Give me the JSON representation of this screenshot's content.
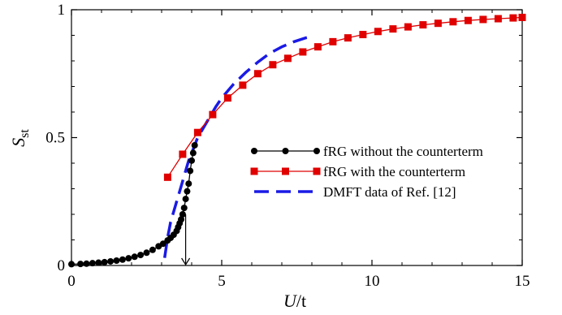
{
  "chart_data": {
    "type": "line",
    "xlabel_main": "U",
    "xlabel_sub": "/t",
    "ylabel_main": "S",
    "ylabel_sub": "st",
    "xlim": [
      0,
      15
    ],
    "ylim": [
      0,
      1
    ],
    "x_tick_labels": [
      "0",
      "5",
      "10",
      "15"
    ],
    "y_tick_labels": [
      "0",
      "0.5",
      "1"
    ],
    "legend_position": "center-right",
    "arrow_at_x": 3.8,
    "series": [
      {
        "name": "fRG without the counterterm",
        "color": "#000000",
        "marker": "circle",
        "style": "solid",
        "x": [
          0.0,
          0.3,
          0.5,
          0.7,
          0.9,
          1.1,
          1.3,
          1.5,
          1.7,
          1.9,
          2.1,
          2.3,
          2.5,
          2.7,
          2.9,
          3.05,
          3.2,
          3.3,
          3.4,
          3.5,
          3.55,
          3.6,
          3.65,
          3.7,
          3.75,
          3.8,
          3.85,
          3.9,
          3.95,
          4.0,
          4.05,
          4.1
        ],
        "y": [
          0.005,
          0.006,
          0.007,
          0.009,
          0.011,
          0.013,
          0.016,
          0.019,
          0.023,
          0.028,
          0.034,
          0.041,
          0.05,
          0.061,
          0.075,
          0.085,
          0.098,
          0.108,
          0.12,
          0.135,
          0.15,
          0.165,
          0.18,
          0.2,
          0.225,
          0.26,
          0.29,
          0.32,
          0.37,
          0.41,
          0.44,
          0.47
        ]
      },
      {
        "name": "fRG with the counterterm",
        "color": "#e00000",
        "marker": "square",
        "style": "solid",
        "x": [
          3.2,
          3.7,
          4.2,
          4.7,
          5.2,
          5.7,
          6.2,
          6.7,
          7.2,
          7.7,
          8.2,
          8.7,
          9.2,
          9.7,
          10.2,
          10.7,
          11.2,
          11.7,
          12.2,
          12.7,
          13.2,
          13.7,
          14.2,
          14.7,
          15.0
        ],
        "y": [
          0.345,
          0.435,
          0.52,
          0.59,
          0.655,
          0.705,
          0.75,
          0.785,
          0.81,
          0.835,
          0.855,
          0.875,
          0.89,
          0.903,
          0.915,
          0.925,
          0.933,
          0.941,
          0.947,
          0.953,
          0.958,
          0.962,
          0.965,
          0.968,
          0.97
        ]
      },
      {
        "name": "DMFT data of Ref. [12]",
        "color": "#1a1ae6",
        "marker": "none",
        "style": "dashed",
        "x": [
          3.1,
          3.15,
          3.2,
          3.25,
          3.3,
          3.4,
          3.5,
          3.6,
          3.7,
          3.8,
          3.9,
          4.0,
          4.2,
          4.4,
          4.6,
          4.8,
          5.0,
          5.4,
          5.8,
          6.2,
          6.6,
          7.0,
          7.4,
          7.8,
          8.0
        ],
        "y": [
          0.03,
          0.07,
          0.11,
          0.14,
          0.17,
          0.21,
          0.25,
          0.29,
          0.33,
          0.37,
          0.41,
          0.44,
          0.5,
          0.54,
          0.58,
          0.62,
          0.655,
          0.71,
          0.755,
          0.795,
          0.83,
          0.855,
          0.875,
          0.89,
          0.895
        ]
      }
    ]
  }
}
